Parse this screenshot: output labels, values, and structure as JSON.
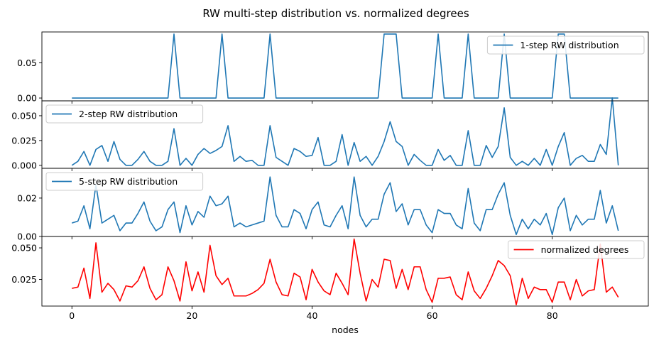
{
  "title": "RW multi-step distribution vs. normalized degrees",
  "chart_data": [
    {
      "type": "line",
      "xlim": [
        -5,
        96
      ],
      "ylim": [
        -0.004,
        0.094
      ],
      "yticks": [
        0.0,
        0.05
      ],
      "ytick_labels": [
        "0.00",
        "0.05"
      ],
      "legend": "top-right",
      "series": [
        {
          "name": "1-step RW distribution",
          "color": "#1f77b4",
          "values": [
            0,
            0,
            0,
            0,
            0,
            0,
            0,
            0,
            0,
            0,
            0,
            0,
            0,
            0,
            0,
            0,
            0,
            0.091,
            0,
            0,
            0,
            0,
            0,
            0,
            0,
            0.091,
            0,
            0,
            0,
            0,
            0,
            0,
            0,
            0.091,
            0,
            0,
            0,
            0,
            0,
            0,
            0,
            0,
            0,
            0,
            0,
            0,
            0,
            0,
            0,
            0,
            0,
            0,
            0.091,
            0.091,
            0.091,
            0,
            0,
            0,
            0,
            0,
            0,
            0.091,
            0,
            0,
            0,
            0,
            0.091,
            0,
            0,
            0,
            0,
            0,
            0.091,
            0,
            0,
            0,
            0,
            0,
            0,
            0,
            0,
            0.091,
            0.091,
            0,
            0,
            0,
            0,
            0,
            0,
            0,
            0,
            0
          ]
        }
      ]
    },
    {
      "type": "line",
      "xlim": [
        -5,
        96
      ],
      "ylim": [
        -0.003,
        0.065
      ],
      "yticks": [
        0.0,
        0.025,
        0.05
      ],
      "ytick_labels": [
        "0.000",
        "0.025",
        "0.050"
      ],
      "legend": "top-left",
      "series": [
        {
          "name": "2-step RW distribution",
          "color": "#1f77b4",
          "values": [
            0,
            0.004,
            0.014,
            0,
            0.016,
            0.02,
            0.004,
            0.024,
            0.006,
            0,
            0,
            0.006,
            0.014,
            0.004,
            0,
            0,
            0.004,
            0.037,
            0,
            0.007,
            0,
            0.011,
            0.017,
            0.012,
            0.015,
            0.019,
            0.04,
            0.004,
            0.009,
            0.004,
            0.005,
            0,
            0,
            0.04,
            0.008,
            0.004,
            0,
            0.017,
            0.014,
            0.009,
            0.01,
            0.028,
            0,
            0,
            0.004,
            0.031,
            0,
            0.023,
            0.004,
            0.009,
            0,
            0.009,
            0.024,
            0.044,
            0.024,
            0.019,
            0,
            0.011,
            0.005,
            0,
            0,
            0.016,
            0.005,
            0.01,
            0,
            0,
            0.035,
            0,
            0,
            0.02,
            0.008,
            0.019,
            0.058,
            0.008,
            0,
            0.004,
            0,
            0.007,
            0,
            0.016,
            0,
            0.019,
            0.033,
            0,
            0.007,
            0.01,
            0.004,
            0.004,
            0.021,
            0.011,
            0.068,
            0
          ]
        }
      ]
    },
    {
      "type": "line",
      "xlim": [
        -5,
        96
      ],
      "ylim": [
        0.0,
        0.0355
      ],
      "yticks": [
        0.0,
        0.02
      ],
      "ytick_labels": [
        "0.00",
        "0.02"
      ],
      "legend": "top-left",
      "series": [
        {
          "name": "5-step RW distribution",
          "color": "#1f77b4",
          "values": [
            0.007,
            0.008,
            0.016,
            0.004,
            0.027,
            0.007,
            0.009,
            0.011,
            0.003,
            0.007,
            0.007,
            0.012,
            0.018,
            0.008,
            0.003,
            0.005,
            0.014,
            0.018,
            0.002,
            0.016,
            0.006,
            0.013,
            0.01,
            0.021,
            0.016,
            0.017,
            0.021,
            0.005,
            0.007,
            0.005,
            0.006,
            0.007,
            0.008,
            0.031,
            0.011,
            0.005,
            0.005,
            0.014,
            0.012,
            0.004,
            0.014,
            0.018,
            0.006,
            0.005,
            0.011,
            0.016,
            0.004,
            0.031,
            0.011,
            0.005,
            0.009,
            0.009,
            0.022,
            0.028,
            0.013,
            0.017,
            0.006,
            0.014,
            0.014,
            0.006,
            0.002,
            0.014,
            0.012,
            0.012,
            0.006,
            0.004,
            0.025,
            0.007,
            0.003,
            0.014,
            0.014,
            0.022,
            0.028,
            0.011,
            0.001,
            0.009,
            0.004,
            0.009,
            0.006,
            0.012,
            0.001,
            0.015,
            0.02,
            0.003,
            0.011,
            0.006,
            0.009,
            0.009,
            0.024,
            0.007,
            0.016,
            0.003
          ]
        }
      ]
    },
    {
      "type": "line",
      "xlim": [
        -5,
        96
      ],
      "ylim": [
        0.004,
        0.059
      ],
      "yticks": [
        0.025,
        0.05
      ],
      "ytick_labels": [
        "0.025",
        "0.050"
      ],
      "xticks": [
        0,
        20,
        40,
        60,
        80
      ],
      "xtick_labels": [
        "0",
        "20",
        "40",
        "60",
        "80"
      ],
      "xlabel": "nodes",
      "legend": "top-right",
      "series": [
        {
          "name": "normalized degrees",
          "color": "#ff0000",
          "values": [
            0.018,
            0.019,
            0.034,
            0.01,
            0.054,
            0.015,
            0.022,
            0.017,
            0.008,
            0.02,
            0.019,
            0.024,
            0.035,
            0.018,
            0.009,
            0.013,
            0.035,
            0.024,
            0.008,
            0.039,
            0.016,
            0.031,
            0.015,
            0.052,
            0.028,
            0.021,
            0.026,
            0.012,
            0.012,
            0.012,
            0.014,
            0.017,
            0.022,
            0.041,
            0.023,
            0.013,
            0.012,
            0.03,
            0.027,
            0.009,
            0.033,
            0.023,
            0.016,
            0.013,
            0.03,
            0.022,
            0.013,
            0.057,
            0.03,
            0.008,
            0.025,
            0.019,
            0.041,
            0.04,
            0.018,
            0.033,
            0.017,
            0.035,
            0.035,
            0.017,
            0.007,
            0.026,
            0.026,
            0.027,
            0.013,
            0.009,
            0.031,
            0.016,
            0.01,
            0.018,
            0.028,
            0.04,
            0.036,
            0.028,
            0.005,
            0.026,
            0.01,
            0.019,
            0.017,
            0.017,
            0.007,
            0.023,
            0.023,
            0.009,
            0.025,
            0.012,
            0.016,
            0.017,
            0.053,
            0.015,
            0.019,
            0.011
          ]
        }
      ]
    }
  ]
}
